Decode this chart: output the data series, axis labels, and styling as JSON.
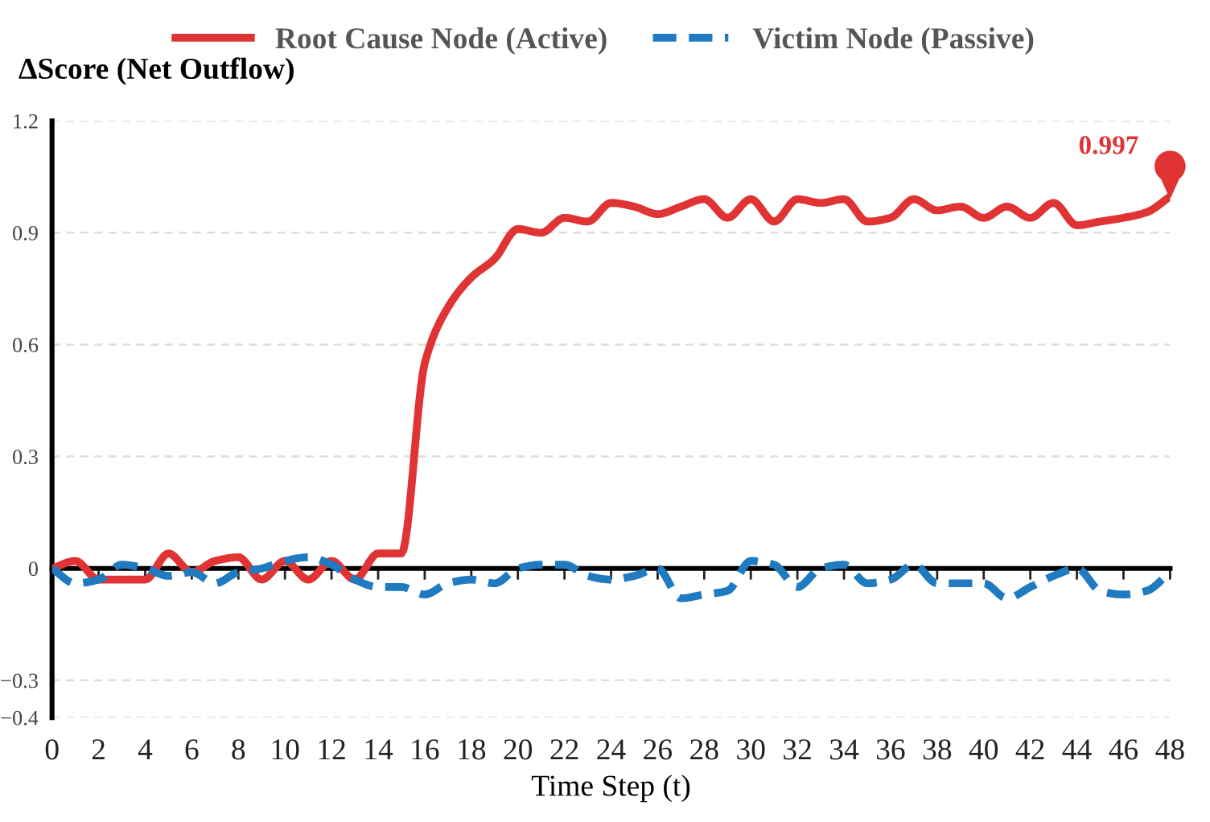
{
  "chart_data": {
    "type": "line",
    "ylabel": "ΔScore (Net Outflow)",
    "xlabel": "Time Step (t)",
    "x": [
      0,
      1,
      2,
      3,
      4,
      5,
      6,
      7,
      8,
      9,
      10,
      11,
      12,
      13,
      14,
      15,
      16,
      17,
      18,
      19,
      20,
      21,
      22,
      23,
      24,
      25,
      26,
      27,
      28,
      29,
      30,
      31,
      32,
      33,
      34,
      35,
      36,
      37,
      38,
      39,
      40,
      41,
      42,
      43,
      44,
      45,
      46,
      47,
      48
    ],
    "series": [
      {
        "name": "Root Cause Node (Active)",
        "color": "#e03333",
        "line_style": "solid",
        "values": [
          0,
          0.02,
          -0.03,
          -0.03,
          -0.03,
          0.04,
          -0.01,
          0.02,
          0.03,
          -0.03,
          0.02,
          -0.03,
          0.02,
          -0.03,
          0.04,
          0.04,
          0.55,
          0.7,
          0.78,
          0.83,
          0.91,
          0.9,
          0.94,
          0.93,
          0.98,
          0.97,
          0.95,
          0.97,
          0.99,
          0.94,
          0.99,
          0.93,
          0.99,
          0.98,
          0.99,
          0.93,
          0.94,
          0.99,
          0.96,
          0.97,
          0.94,
          0.97,
          0.94,
          0.98,
          0.92,
          0.93,
          0.94,
          0.955,
          0.997
        ]
      },
      {
        "name": "Victim Node (Passive)",
        "color": "#1f7ac0",
        "line_style": "dashed",
        "values": [
          0,
          -0.04,
          -0.03,
          0.01,
          0,
          -0.02,
          -0.01,
          -0.04,
          -0.01,
          0,
          0.02,
          0.03,
          0.01,
          -0.03,
          -0.05,
          -0.05,
          -0.07,
          -0.04,
          -0.03,
          -0.04,
          0,
          0.01,
          0.01,
          -0.02,
          -0.03,
          -0.02,
          0,
          -0.08,
          -0.07,
          -0.06,
          0.02,
          0.01,
          -0.05,
          0,
          0.01,
          -0.04,
          -0.03,
          0.01,
          -0.04,
          -0.04,
          -0.04,
          -0.08,
          -0.05,
          -0.02,
          0,
          -0.06,
          -0.07,
          -0.06,
          -0.01
        ]
      }
    ],
    "annotations": [
      {
        "text": "0.997",
        "x": 48,
        "y": 0.997
      }
    ],
    "xlim": [
      0,
      48
    ],
    "xticks": [
      0,
      2,
      4,
      6,
      8,
      10,
      12,
      14,
      16,
      18,
      20,
      22,
      24,
      26,
      28,
      30,
      32,
      34,
      36,
      38,
      40,
      42,
      44,
      46,
      48
    ],
    "ylim": [
      -0.4,
      1.2
    ],
    "yticks": [
      {
        "value": -0.4,
        "label": "−0.4"
      },
      {
        "value": -0.3,
        "label": "−0.3"
      },
      0,
      0.3,
      0.6,
      0.9,
      1.2
    ],
    "grid": "y",
    "legend": "top",
    "marker": "none"
  }
}
